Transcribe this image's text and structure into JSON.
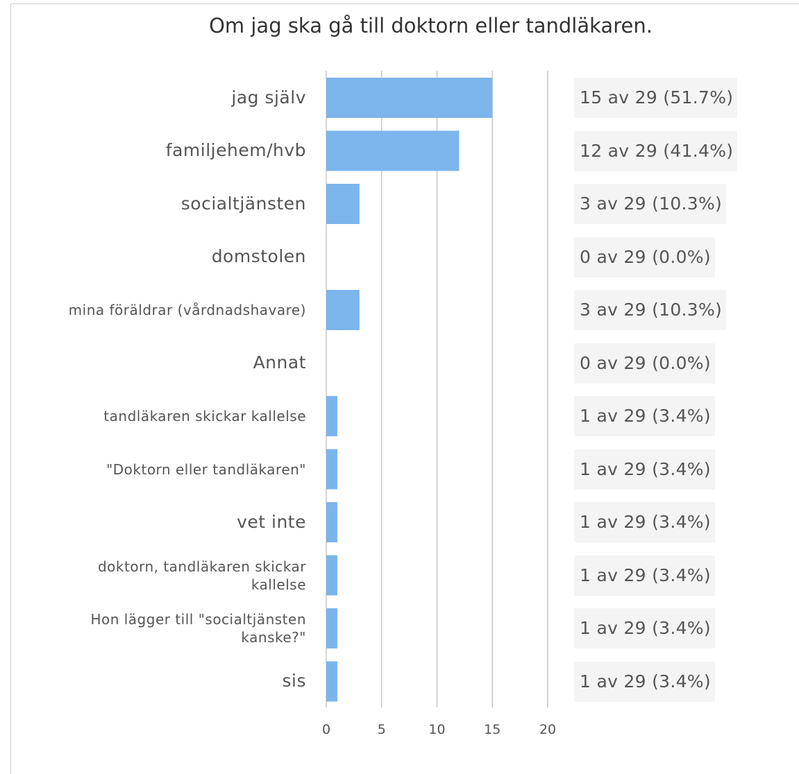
{
  "chart_data": {
    "type": "bar",
    "orientation": "horizontal",
    "title": "Om jag ska gå till doktorn eller tandläkaren.",
    "categories": [
      "jag själv",
      "familjehem/hvb",
      "socialtjänsten",
      "domstolen",
      "mina föräldrar (vårdnadshavare)",
      "Annat",
      "tandläkaren skickar kallelse",
      "\"Doktorn eller tandläkaren\"",
      "vet inte",
      "doktorn, tandläkaren skickar kallelse",
      "Hon lägger till \"socialtjänsten kanske?\"",
      "sis"
    ],
    "values": [
      15,
      12,
      3,
      0,
      3,
      0,
      1,
      1,
      1,
      1,
      1,
      1
    ],
    "value_labels": [
      "15 av 29 (51.7%)",
      "12 av 29 (41.4%)",
      "3 av 29 (10.3%)",
      "0 av 29 (0.0%)",
      "3 av 29 (10.3%)",
      "0 av 29 (0.0%)",
      "1 av 29 (3.4%)",
      "1 av 29 (3.4%)",
      "1 av 29 (3.4%)",
      "1 av 29 (3.4%)",
      "1 av 29 (3.4%)",
      "1 av 29 (3.4%)"
    ],
    "color": "#7cb5ec",
    "xlim": [
      0,
      20
    ],
    "xticks": [
      0,
      5,
      10,
      15,
      20
    ],
    "grid": true
  }
}
